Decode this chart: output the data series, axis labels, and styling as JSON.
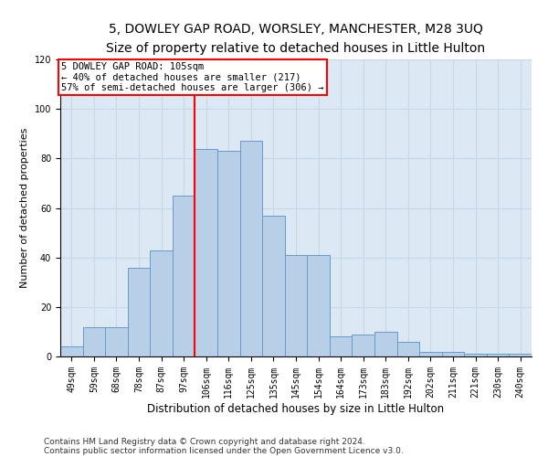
{
  "title1": "5, DOWLEY GAP ROAD, WORSLEY, MANCHESTER, M28 3UQ",
  "title2": "Size of property relative to detached houses in Little Hulton",
  "xlabel": "Distribution of detached houses by size in Little Hulton",
  "ylabel": "Number of detached properties",
  "categories": [
    "49sqm",
    "59sqm",
    "68sqm",
    "78sqm",
    "87sqm",
    "97sqm",
    "106sqm",
    "116sqm",
    "125sqm",
    "135sqm",
    "145sqm",
    "154sqm",
    "164sqm",
    "173sqm",
    "183sqm",
    "192sqm",
    "202sqm",
    "211sqm",
    "221sqm",
    "230sqm",
    "240sqm"
  ],
  "values": [
    4,
    12,
    12,
    36,
    43,
    65,
    84,
    83,
    87,
    57,
    41,
    41,
    8,
    9,
    10,
    6,
    2,
    2,
    1,
    1,
    1
  ],
  "bar_color": "#b8cfe8",
  "bar_edge_color": "#6699cc",
  "vline_x": 6.0,
  "vline_color": "red",
  "annotation_text": "5 DOWLEY GAP ROAD: 105sqm\n← 40% of detached houses are smaller (217)\n57% of semi-detached houses are larger (306) →",
  "annotation_box_color": "white",
  "annotation_box_edge": "red",
  "ylim": [
    0,
    120
  ],
  "yticks": [
    0,
    20,
    40,
    60,
    80,
    100,
    120
  ],
  "grid_color": "#c8d8e8",
  "bg_color": "#dce8f4",
  "footer1": "Contains HM Land Registry data © Crown copyright and database right 2024.",
  "footer2": "Contains public sector information licensed under the Open Government Licence v3.0.",
  "title_fontsize": 10,
  "subtitle_fontsize": 9,
  "xlabel_fontsize": 8.5,
  "ylabel_fontsize": 8,
  "tick_fontsize": 7,
  "annot_fontsize": 7.5,
  "footer_fontsize": 6.5
}
